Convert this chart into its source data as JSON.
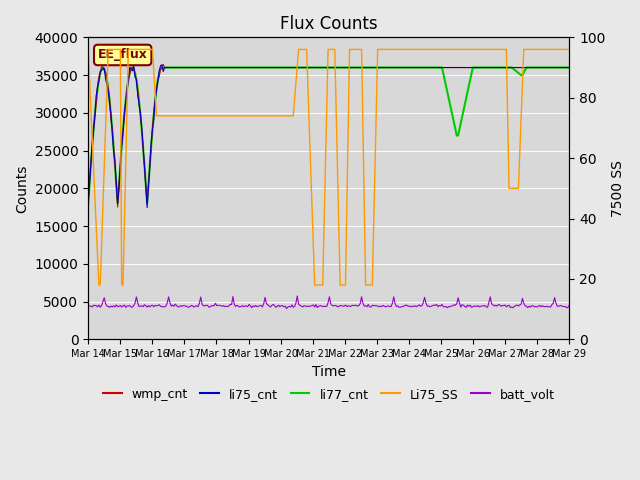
{
  "title": "Flux Counts",
  "xlabel": "Time",
  "ylabel_left": "Counts",
  "ylabel_right": "7500 SS",
  "ylim_left": [
    0,
    40000
  ],
  "ylim_right": [
    0,
    100
  ],
  "annotation_text": "EE_flux",
  "background_color": "#e8e8e8",
  "plot_bg_color": "#d8d8d8",
  "legend_entries": [
    "wmp_cnt",
    "li75_cnt",
    "li77_cnt",
    "Li75_SS",
    "batt_volt"
  ],
  "legend_colors": [
    "#cc0000",
    "#0000cc",
    "#00cc00",
    "#ff9900",
    "#9900cc"
  ],
  "x_tick_labels": [
    "Mar 14",
    "Mar 15",
    "Mar 16",
    "Mar 17",
    "Mar 18",
    "Mar 19",
    "Mar 20",
    "Mar 21",
    "Mar 22",
    "Mar 23",
    "Mar 24",
    "Mar 25",
    "Mar 26",
    "Mar 27",
    "Mar 28",
    "Mar 29"
  ],
  "n_days": 15,
  "li77_flat": 36000,
  "li75_SS_high_pct": 96,
  "batt_base": 4400,
  "batt_noise": 100,
  "batt_bump": 1200
}
